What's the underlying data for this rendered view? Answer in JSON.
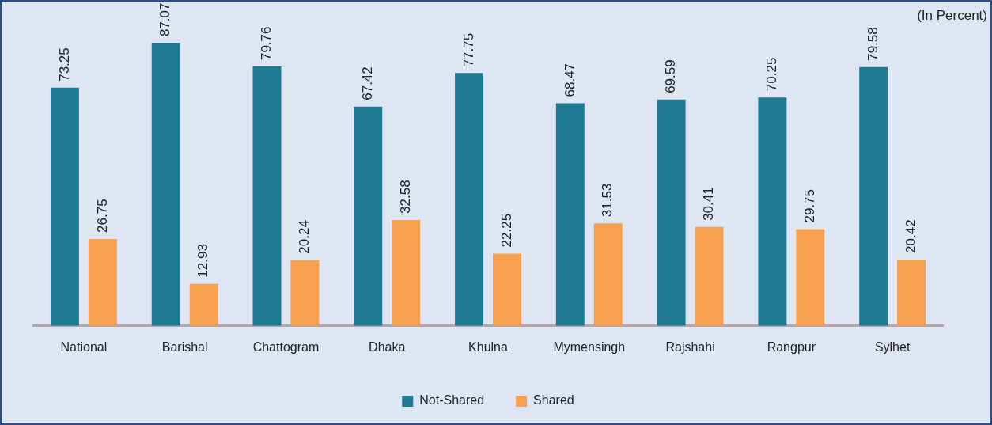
{
  "chart_data": {
    "type": "bar",
    "categories": [
      "National",
      "Barishal",
      "Chattogram",
      "Dhaka",
      "Khulna",
      "Mymensingh",
      "Rajshahi",
      "Rangpur",
      "Sylhet"
    ],
    "series": [
      {
        "name": "Not-Shared",
        "color": "#1f7a94",
        "values": [
          73.25,
          87.07,
          79.76,
          67.42,
          77.75,
          68.47,
          69.59,
          70.25,
          79.58
        ]
      },
      {
        "name": "Shared",
        "color": "#f7a150",
        "values": [
          26.75,
          12.93,
          20.24,
          32.58,
          22.25,
          31.53,
          30.41,
          29.75,
          20.42
        ]
      }
    ],
    "annotations": [
      "(In Percent)"
    ],
    "data_labels": true,
    "legend": "bottom",
    "grid": false,
    "tick_labels": "x"
  }
}
